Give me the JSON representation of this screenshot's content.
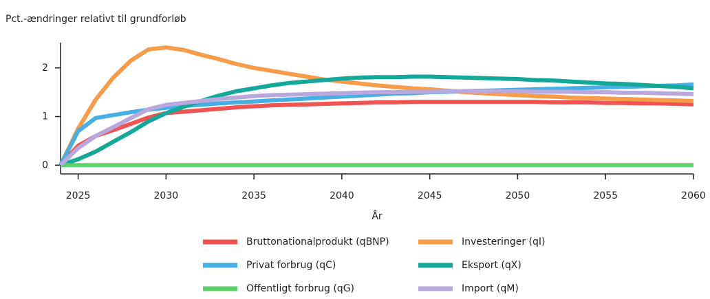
{
  "chart_data": {
    "type": "line",
    "y_label": "Pct.-ændringer relativt til grundforløb",
    "x_label": "År",
    "x": [
      2024,
      2025,
      2026,
      2027,
      2028,
      2029,
      2030,
      2031,
      2032,
      2033,
      2034,
      2035,
      2036,
      2037,
      2038,
      2039,
      2040,
      2041,
      2042,
      2043,
      2044,
      2045,
      2046,
      2047,
      2048,
      2049,
      2050,
      2051,
      2052,
      2053,
      2054,
      2055,
      2056,
      2057,
      2058,
      2059,
      2060
    ],
    "xlim": [
      2024,
      2060
    ],
    "xticks": [
      2025,
      2030,
      2035,
      2040,
      2045,
      2050,
      2055,
      2060
    ],
    "ylim": [
      -0.18,
      2.52
    ],
    "yticks": [
      0,
      1,
      2
    ],
    "series": [
      {
        "name": "Bruttonationalprodukt (qBNP)",
        "color": "#ef5453",
        "values": [
          0,
          0.4,
          0.6,
          0.72,
          0.85,
          0.98,
          1.07,
          1.1,
          1.13,
          1.16,
          1.19,
          1.21,
          1.23,
          1.24,
          1.25,
          1.26,
          1.27,
          1.28,
          1.29,
          1.29,
          1.3,
          1.3,
          1.3,
          1.3,
          1.3,
          1.3,
          1.3,
          1.3,
          1.29,
          1.29,
          1.29,
          1.28,
          1.28,
          1.27,
          1.27,
          1.26,
          1.25
        ]
      },
      {
        "name": "Investeringer (qI)",
        "color": "#f89c4a",
        "values": [
          0,
          0.75,
          1.35,
          1.8,
          2.15,
          2.38,
          2.42,
          2.37,
          2.27,
          2.18,
          2.08,
          2.0,
          1.94,
          1.88,
          1.82,
          1.76,
          1.72,
          1.68,
          1.64,
          1.61,
          1.58,
          1.56,
          1.53,
          1.5,
          1.48,
          1.46,
          1.44,
          1.42,
          1.41,
          1.39,
          1.38,
          1.37,
          1.36,
          1.35,
          1.34,
          1.33,
          1.32
        ]
      },
      {
        "name": "Privat forbrug (qC)",
        "color": "#45b0e1",
        "values": [
          0,
          0.7,
          0.97,
          1.03,
          1.09,
          1.14,
          1.18,
          1.22,
          1.24,
          1.27,
          1.29,
          1.31,
          1.33,
          1.35,
          1.37,
          1.39,
          1.41,
          1.43,
          1.45,
          1.47,
          1.48,
          1.5,
          1.51,
          1.52,
          1.53,
          1.54,
          1.55,
          1.56,
          1.57,
          1.58,
          1.59,
          1.6,
          1.61,
          1.62,
          1.63,
          1.64,
          1.66
        ]
      },
      {
        "name": "Eksport (qX)",
        "color": "#14a899",
        "values": [
          0,
          0.12,
          0.28,
          0.48,
          0.68,
          0.9,
          1.07,
          1.2,
          1.32,
          1.43,
          1.52,
          1.58,
          1.64,
          1.69,
          1.72,
          1.75,
          1.78,
          1.8,
          1.81,
          1.81,
          1.82,
          1.82,
          1.81,
          1.8,
          1.79,
          1.78,
          1.77,
          1.75,
          1.74,
          1.72,
          1.7,
          1.68,
          1.67,
          1.65,
          1.63,
          1.61,
          1.58
        ]
      },
      {
        "name": "Offentligt forbrug (qG)",
        "color": "#5dcf6b",
        "values": [
          0,
          0,
          0,
          0,
          0,
          0,
          0,
          0,
          0,
          0,
          0,
          0,
          0,
          0,
          0,
          0,
          0,
          0,
          0,
          0,
          0,
          0,
          0,
          0,
          0,
          0,
          0,
          0,
          0,
          0,
          0,
          0,
          0,
          0,
          0,
          0,
          0
        ]
      },
      {
        "name": "Import (qM)",
        "color": "#b9a8dd",
        "values": [
          0,
          0.35,
          0.6,
          0.78,
          0.97,
          1.15,
          1.24,
          1.28,
          1.32,
          1.36,
          1.39,
          1.42,
          1.44,
          1.45,
          1.46,
          1.47,
          1.48,
          1.49,
          1.5,
          1.5,
          1.51,
          1.51,
          1.52,
          1.52,
          1.52,
          1.52,
          1.52,
          1.51,
          1.51,
          1.51,
          1.5,
          1.5,
          1.49,
          1.49,
          1.48,
          1.47,
          1.46
        ]
      }
    ]
  }
}
